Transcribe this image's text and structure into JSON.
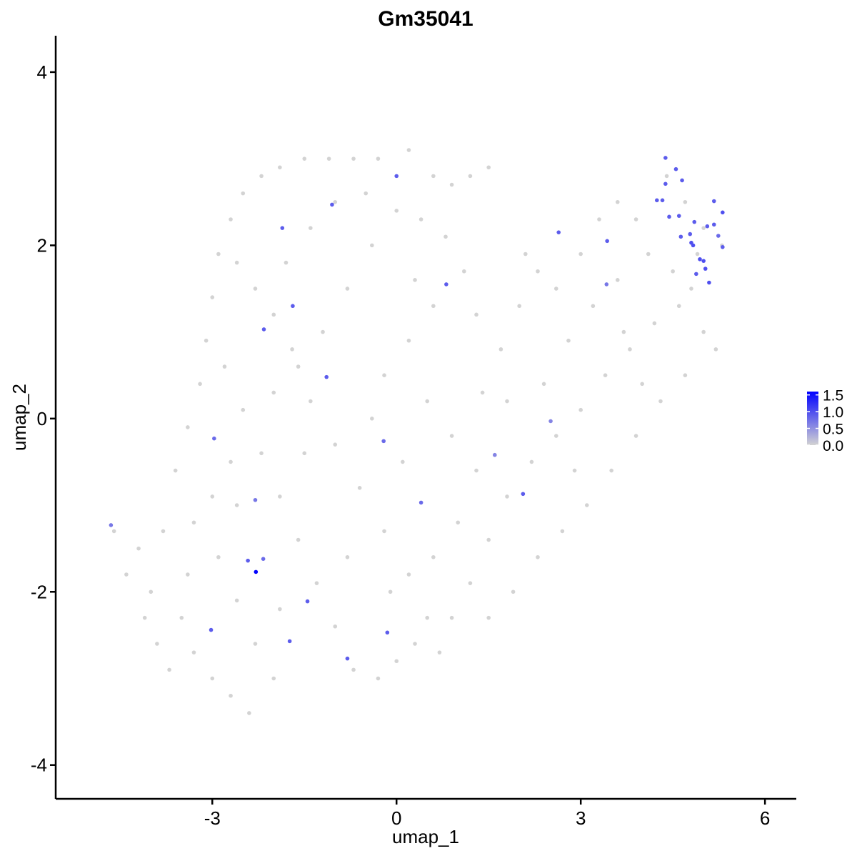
{
  "chart_data": {
    "type": "scatter",
    "title": "Gm35041",
    "x_label": "umap_1",
    "y_label": "umap_2",
    "xlim": [
      -5.55,
      6.51
    ],
    "ylim": [
      -4.39,
      4.42
    ],
    "xticks": [
      -3,
      0,
      3,
      6
    ],
    "yticks": [
      -4,
      -2,
      0,
      2,
      4
    ],
    "colorbar": {
      "lim": [
        0,
        1.6
      ],
      "colors": [
        "#d3d3d3",
        "#0000ff"
      ],
      "ticks": [
        {
          "value": 0,
          "label": "0.0"
        },
        {
          "value": 0.5,
          "label": "0.5"
        },
        {
          "value": 1,
          "label": "1.0"
        },
        {
          "value": 1.5,
          "label": "1.5"
        }
      ]
    },
    "x": [
      -4.2,
      -4.0,
      -3.9,
      -3.7,
      -3.5,
      -3.4,
      -3.3,
      -3.6,
      -3.4,
      -3.2,
      -3.1,
      -3.0,
      -2.9,
      -2.7,
      -2.5,
      -2.2,
      -1.9,
      -1.5,
      -1.1,
      -0.7,
      -0.3,
      0.2,
      0.6,
      0.9,
      1.2,
      -2.6,
      -2.3,
      -2.0,
      -1.7,
      -1.4,
      -1.0,
      -0.6,
      -0.2,
      0.2,
      0.5,
      0.7,
      -2.8,
      -2.5,
      -2.2,
      -1.9,
      -1.6,
      -1.3,
      -1.0,
      -0.7,
      -0.3,
      0.0,
      0.3,
      -2.9,
      -2.6,
      -2.3,
      -2.0,
      -2.7,
      -2.4,
      -3.0,
      -3.3,
      -3.0,
      -2.7,
      -2.0,
      -1.6,
      -1.2,
      -0.8,
      -0.4,
      0.0,
      -1.8,
      -1.4,
      -1.0,
      -0.5,
      0.4,
      0.8,
      1.1,
      0.6,
      0.2,
      -0.2,
      0.5,
      0.9,
      1.3,
      1.0,
      0.6,
      1.2,
      0.9,
      1.5,
      1.8,
      2.2,
      2.6,
      3.0,
      3.4,
      3.8,
      4.2,
      4.6,
      5.0,
      5.2,
      4.7,
      4.3,
      3.9,
      3.5,
      3.1,
      2.7,
      2.3,
      1.9,
      1.5,
      1.4,
      1.7,
      2.0,
      2.3,
      2.1,
      2.6,
      3.0,
      3.3,
      3.6,
      3.9,
      4.1,
      4.5,
      4.8,
      2.8,
      3.2,
      3.6,
      1.8,
      2.4,
      2.9,
      0.1,
      -0.4,
      -0.8,
      -1.5,
      -3.8,
      -4.1,
      -4.6,
      -4.4,
      4.4,
      4.7,
      5.0,
      5.3,
      4.9,
      1.5,
      1.3,
      0.3,
      -0.1,
      -1.9,
      -2.6,
      3.7,
      4.0,
      -2.29,
      0,
      -1.05,
      -1.86,
      -1.69,
      -2.16,
      0.81,
      -1.14,
      -2.97,
      -0.21,
      1.6,
      2.51,
      2.06,
      0.4,
      -2.3,
      -2.17,
      -2.42,
      -4.65,
      -1.45,
      -1.74,
      -3.02,
      -0.8,
      -0.15,
      2.64,
      3.43,
      3.42,
      4.38,
      4.55,
      4.65,
      4.38,
      4.24,
      4.33,
      4.44,
      4.6,
      4.63,
      4.85,
      4.8,
      4.83,
      5.17,
      5.31,
      5.06,
      5.17,
      5.24,
      5.31,
      4.94,
      5.0,
      5.03,
      4.88,
      5.09,
      4.78
    ],
    "y": [
      -1.5,
      -2.0,
      -2.6,
      -2.9,
      -2.3,
      -1.8,
      -1.2,
      -0.6,
      -0.1,
      0.4,
      0.9,
      1.4,
      1.9,
      2.3,
      2.6,
      2.8,
      2.9,
      3.0,
      3.0,
      3.0,
      3.0,
      3.1,
      2.8,
      2.7,
      2.8,
      1.8,
      1.5,
      1.2,
      0.8,
      0.2,
      -0.3,
      -0.8,
      -1.3,
      -1.8,
      -2.3,
      -2.7,
      0.6,
      0.1,
      -0.4,
      -0.9,
      -1.4,
      -1.9,
      -2.4,
      -2.9,
      -3.0,
      -2.8,
      -2.6,
      -1.6,
      -2.1,
      -2.6,
      -3.0,
      -3.2,
      -3.4,
      -3.0,
      -2.7,
      -0.9,
      -0.5,
      0.3,
      0.6,
      1.0,
      1.5,
      2.0,
      2.4,
      1.8,
      2.2,
      2.5,
      2.6,
      2.3,
      2.1,
      1.7,
      1.3,
      0.9,
      0.5,
      0.2,
      -0.2,
      -0.6,
      -1.2,
      -1.6,
      -1.9,
      -2.3,
      -1.4,
      -0.9,
      -0.5,
      -0.2,
      0.1,
      0.5,
      0.8,
      1.1,
      1.3,
      1.0,
      0.8,
      0.5,
      0.2,
      -0.2,
      -0.6,
      -1.0,
      -1.3,
      -1.6,
      -2.0,
      -2.3,
      0.3,
      0.8,
      1.3,
      1.7,
      1.9,
      1.5,
      1.9,
      2.3,
      2.5,
      2.3,
      1.9,
      1.7,
      1.5,
      0.9,
      1.3,
      1.6,
      0.2,
      0.4,
      -0.6,
      -0.5,
      0.0,
      -1.6,
      -0.4,
      -1.3,
      -2.3,
      -1.3,
      -1.8,
      2.8,
      2.5,
      2.2,
      2.0,
      1.9,
      2.9,
      1.2,
      1.6,
      -2.0,
      -2.2,
      -1.0,
      1.0,
      0.4,
      -1.77,
      2.8,
      2.47,
      2.2,
      1.3,
      1.03,
      1.55,
      0.48,
      -0.23,
      -0.26,
      -0.42,
      -0.03,
      -0.87,
      -0.97,
      -0.94,
      -1.62,
      -1.64,
      -1.23,
      -2.11,
      -2.57,
      -2.44,
      -2.77,
      -2.47,
      2.15,
      2.05,
      1.55,
      3.01,
      2.88,
      2.75,
      2.71,
      2.52,
      2.52,
      2.33,
      2.34,
      2.1,
      2.27,
      2.03,
      2.0,
      2.51,
      2.38,
      2.22,
      2.24,
      2.11,
      1.98,
      1.84,
      1.82,
      1.73,
      1.67,
      1.57,
      2.13
    ],
    "values": [
      0,
      0,
      0,
      0,
      0,
      0,
      0,
      0,
      0,
      0,
      0,
      0,
      0,
      0,
      0,
      0,
      0,
      0,
      0,
      0,
      0,
      0,
      0,
      0,
      0,
      0,
      0,
      0,
      0,
      0,
      0,
      0,
      0,
      0,
      0,
      0,
      0,
      0,
      0,
      0,
      0,
      0,
      0,
      0,
      0,
      0,
      0,
      0,
      0,
      0,
      0,
      0,
      0,
      0,
      0,
      0,
      0,
      0,
      0,
      0,
      0,
      0,
      0,
      0,
      0,
      0,
      0,
      0,
      0,
      0,
      0,
      0,
      0,
      0,
      0,
      0,
      0,
      0,
      0,
      0,
      0,
      0,
      0,
      0,
      0,
      0,
      0,
      0,
      0,
      0,
      0,
      0,
      0,
      0,
      0,
      0,
      0,
      0,
      0,
      0,
      0,
      0,
      0,
      0,
      0,
      0,
      0,
      0,
      0,
      0,
      0,
      0,
      0,
      0,
      0,
      0,
      0,
      0,
      0,
      0,
      0,
      0,
      0,
      0,
      0,
      0,
      0,
      0,
      0,
      0,
      0,
      0,
      0,
      0,
      0,
      0,
      0,
      0,
      0,
      0,
      1.58,
      0.9,
      0.9,
      0.9,
      0.9,
      0.9,
      0.9,
      0.9,
      0.8,
      0.8,
      0.6,
      0.6,
      0.9,
      0.8,
      0.7,
      0.8,
      0.9,
      0.7,
      0.9,
      0.9,
      0.9,
      0.9,
      0.9,
      0.9,
      0.9,
      0.7,
      0.9,
      0.9,
      0.9,
      0.9,
      0.9,
      0.9,
      0.9,
      0.9,
      0.9,
      0.9,
      1.0,
      1.0,
      0.9,
      1.0,
      0.9,
      0.9,
      0.8,
      0.9,
      1.0,
      1.0,
      1.0,
      0.9,
      1.0,
      0.9
    ]
  }
}
